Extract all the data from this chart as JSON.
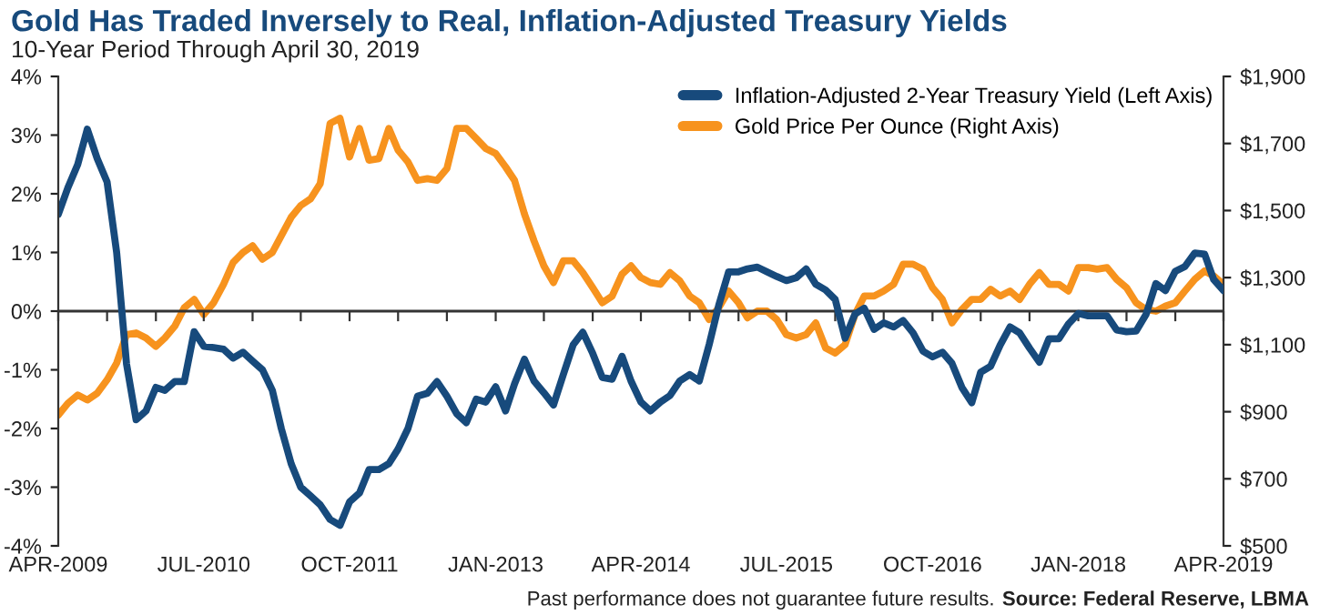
{
  "chart_data": {
    "type": "line",
    "title": "Gold Has Traded Inversely to Real, Inflation-Adjusted Treasury Yields",
    "subtitle": "10-Year Period Through April 30, 2019",
    "annotations": [
      "Past performance does not guarantee future results.",
      "Source: Federal Reserve, LBMA"
    ],
    "x": [
      "2009-04",
      "2009-05",
      "2009-06",
      "2009-07",
      "2009-08",
      "2009-09",
      "2009-10",
      "2009-11",
      "2009-12",
      "2010-01",
      "2010-02",
      "2010-03",
      "2010-04",
      "2010-05",
      "2010-06",
      "2010-07",
      "2010-08",
      "2010-09",
      "2010-10",
      "2010-11",
      "2010-12",
      "2011-01",
      "2011-02",
      "2011-03",
      "2011-04",
      "2011-05",
      "2011-06",
      "2011-07",
      "2011-08",
      "2011-09",
      "2011-10",
      "2011-11",
      "2011-12",
      "2012-01",
      "2012-02",
      "2012-03",
      "2012-04",
      "2012-05",
      "2012-06",
      "2012-07",
      "2012-08",
      "2012-09",
      "2012-10",
      "2012-11",
      "2012-12",
      "2013-01",
      "2013-02",
      "2013-03",
      "2013-04",
      "2013-05",
      "2013-06",
      "2013-07",
      "2013-08",
      "2013-09",
      "2013-10",
      "2013-11",
      "2013-12",
      "2014-01",
      "2014-02",
      "2014-03",
      "2014-04",
      "2014-05",
      "2014-06",
      "2014-07",
      "2014-08",
      "2014-09",
      "2014-10",
      "2014-11",
      "2014-12",
      "2015-01",
      "2015-02",
      "2015-03",
      "2015-04",
      "2015-05",
      "2015-06",
      "2015-07",
      "2015-08",
      "2015-09",
      "2015-10",
      "2015-11",
      "2015-12",
      "2016-01",
      "2016-02",
      "2016-03",
      "2016-04",
      "2016-05",
      "2016-06",
      "2016-07",
      "2016-08",
      "2016-09",
      "2016-10",
      "2016-11",
      "2016-12",
      "2017-01",
      "2017-02",
      "2017-03",
      "2017-04",
      "2017-05",
      "2017-06",
      "2017-07",
      "2017-08",
      "2017-09",
      "2017-10",
      "2017-11",
      "2017-12",
      "2018-01",
      "2018-02",
      "2018-03",
      "2018-04",
      "2018-05",
      "2018-06",
      "2018-07",
      "2018-08",
      "2018-09",
      "2018-10",
      "2018-11",
      "2018-12",
      "2019-01",
      "2019-02",
      "2019-03",
      "2019-04"
    ],
    "series": [
      {
        "name": "Inflation-Adjusted 2-Year Treasury Yield (Left Axis)",
        "color": "#174a7c",
        "values": [
          1.65,
          2.1,
          2.5,
          3.1,
          2.6,
          2.2,
          1.0,
          -0.9,
          -1.85,
          -1.7,
          -1.3,
          -1.35,
          -1.2,
          -1.2,
          -0.35,
          -0.6,
          -0.62,
          -0.65,
          -0.8,
          -0.7,
          -0.85,
          -1.0,
          -1.35,
          -2.0,
          -2.6,
          -3.0,
          -3.15,
          -3.3,
          -3.55,
          -3.65,
          -3.25,
          -3.1,
          -2.7,
          -2.7,
          -2.6,
          -2.35,
          -2.0,
          -1.45,
          -1.4,
          -1.2,
          -1.45,
          -1.75,
          -1.9,
          -1.5,
          -1.55,
          -1.29,
          -1.7,
          -1.24,
          -0.82,
          -1.19,
          -1.39,
          -1.6,
          -1.08,
          -0.57,
          -0.36,
          -0.72,
          -1.13,
          -1.16,
          -0.77,
          -1.19,
          -1.55,
          -1.7,
          -1.55,
          -1.44,
          -1.19,
          -1.08,
          -1.19,
          -0.57,
          0.1,
          0.67,
          0.67,
          0.72,
          0.75,
          0.67,
          0.59,
          0.52,
          0.57,
          0.72,
          0.46,
          0.36,
          0.2,
          -0.46,
          -0.05,
          0.05,
          -0.31,
          -0.2,
          -0.27,
          -0.16,
          -0.37,
          -0.68,
          -0.78,
          -0.7,
          -0.89,
          -1.3,
          -1.56,
          -1.04,
          -0.94,
          -0.58,
          -0.27,
          -0.37,
          -0.63,
          -0.87,
          -0.47,
          -0.47,
          -0.22,
          -0.04,
          -0.08,
          -0.08,
          -0.08,
          -0.32,
          -0.35,
          -0.34,
          -0.06,
          0.47,
          0.35,
          0.68,
          0.76,
          0.99,
          0.97,
          0.54,
          0.35
        ]
      },
      {
        "name": "Gold Price Per Ounce (Right Axis)",
        "color": "#f7931e",
        "axis": "y2",
        "values": [
          890,
          925,
          950,
          935,
          955,
          995,
          1045,
          1130,
          1135,
          1120,
          1095,
          1120,
          1155,
          1210,
          1235,
          1190,
          1225,
          1280,
          1345,
          1375,
          1395,
          1355,
          1375,
          1425,
          1480,
          1515,
          1535,
          1580,
          1760,
          1775,
          1660,
          1745,
          1650,
          1655,
          1745,
          1680,
          1645,
          1590,
          1595,
          1590,
          1625,
          1745,
          1745,
          1715,
          1685,
          1670,
          1630,
          1590,
          1490,
          1410,
          1335,
          1285,
          1350,
          1350,
          1315,
          1270,
          1225,
          1245,
          1310,
          1335,
          1300,
          1285,
          1280,
          1315,
          1290,
          1245,
          1225,
          1175,
          1210,
          1260,
          1225,
          1180,
          1200,
          1200,
          1175,
          1130,
          1120,
          1130,
          1165,
          1090,
          1075,
          1100,
          1190,
          1245,
          1245,
          1260,
          1280,
          1340,
          1340,
          1325,
          1270,
          1235,
          1165,
          1205,
          1235,
          1235,
          1265,
          1245,
          1260,
          1235,
          1280,
          1315,
          1280,
          1280,
          1260,
          1330,
          1330,
          1325,
          1330,
          1295,
          1270,
          1225,
          1205,
          1200,
          1215,
          1225,
          1260,
          1295,
          1320,
          1305,
          1280
        ]
      }
    ],
    "xlim": [
      "2009-04",
      "2019-04"
    ],
    "xticks": [
      {
        "value": "2009-04",
        "label": "APR-2009"
      },
      {
        "value": "2009-09",
        "label": null
      },
      {
        "value": "2010-02",
        "label": null
      },
      {
        "value": "2010-07",
        "label": "JUL-2010"
      },
      {
        "value": "2010-12",
        "label": null
      },
      {
        "value": "2011-05",
        "label": null
      },
      {
        "value": "2011-10",
        "label": "OCT-2011"
      },
      {
        "value": "2012-03",
        "label": null
      },
      {
        "value": "2012-08",
        "label": null
      },
      {
        "value": "2013-01",
        "label": "JAN-2013"
      },
      {
        "value": "2013-06",
        "label": null
      },
      {
        "value": "2013-11",
        "label": null
      },
      {
        "value": "2014-04",
        "label": "APR-2014"
      },
      {
        "value": "2014-09",
        "label": null
      },
      {
        "value": "2015-02",
        "label": null
      },
      {
        "value": "2015-07",
        "label": "JUL-2015"
      },
      {
        "value": "2015-12",
        "label": null
      },
      {
        "value": "2016-05",
        "label": null
      },
      {
        "value": "2016-10",
        "label": "OCT-2016"
      },
      {
        "value": "2017-03",
        "label": null
      },
      {
        "value": "2017-08",
        "label": null
      },
      {
        "value": "2018-01",
        "label": "JAN-2018"
      },
      {
        "value": "2018-06",
        "label": null
      },
      {
        "value": "2018-11",
        "label": null
      },
      {
        "value": "2019-04",
        "label": "APR-2019"
      }
    ],
    "ylim": [
      -4,
      4
    ],
    "yticks": [
      {
        "value": -4,
        "label": "-4%"
      },
      {
        "value": -3,
        "label": "-3%"
      },
      {
        "value": -2,
        "label": "-2%"
      },
      {
        "value": -1,
        "label": "-1%"
      },
      {
        "value": 0,
        "label": "0%"
      },
      {
        "value": 1,
        "label": "1%"
      },
      {
        "value": 2,
        "label": "2%"
      },
      {
        "value": 3,
        "label": "3%"
      },
      {
        "value": 4,
        "label": "4%"
      }
    ],
    "y2lim": [
      500,
      1900
    ],
    "y2ticks": [
      {
        "value": 500,
        "label": "$500"
      },
      {
        "value": 700,
        "label": "$700"
      },
      {
        "value": 900,
        "label": "$900"
      },
      {
        "value": 1100,
        "label": "$1,100"
      },
      {
        "value": 1300,
        "label": "$1,300"
      },
      {
        "value": 1500,
        "label": "$1,500"
      },
      {
        "value": 1700,
        "label": "$1,700"
      },
      {
        "value": 1900,
        "label": "$1,900"
      }
    ],
    "ref_lines": [
      {
        "axis": "y",
        "value": 0,
        "color": "#333333"
      }
    ],
    "legend": "top right",
    "marker": "none",
    "line_style": "solid"
  }
}
